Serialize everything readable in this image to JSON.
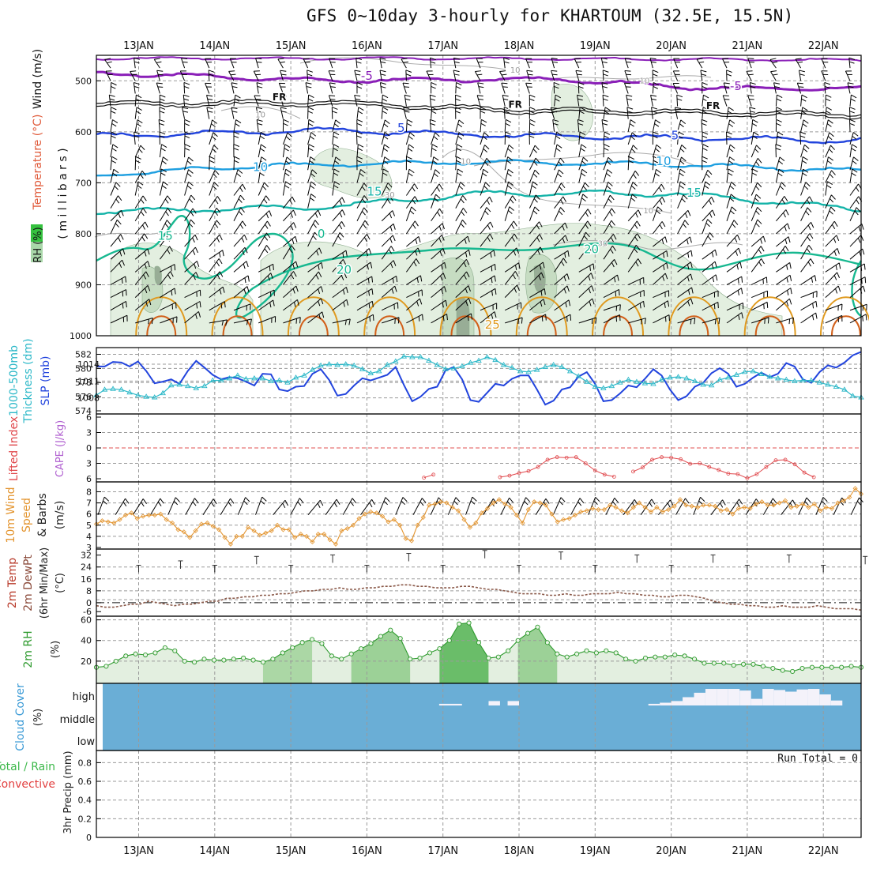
{
  "title": "GFS 0~10day 3-hourly for KHARTOUM (32.5E, 15.5N)",
  "colors": {
    "frame": "#000000",
    "grid": "#9a9a9a",
    "purple": "#8a1fb8",
    "blue": "#2244dd",
    "skyblue": "#1e9fe0",
    "teal": "#14b3a8",
    "sea": "#17b890",
    "orange": "#e09a1f",
    "darkorange": "#d2601a",
    "rh_light": "#e3efe0",
    "rh_mid": "#c6dcc2",
    "rh_dark": "#98ad96",
    "slp": "#2244dd",
    "thick": "#2cb8c8",
    "li": "#e0484c",
    "cape": "#b060d0",
    "wind": "#e39530",
    "temp_line": "#4a3a30",
    "dew_line": "#8b5a4a",
    "rh2m": "#2e9a2e",
    "rh2m_fill": "#7cc47c",
    "cloud": "#6aaed6"
  },
  "chart_data": [
    {
      "type": "contour",
      "panel": "upper-air",
      "ylabel_parts": [
        "RH (%)",
        "Temperature (°C)",
        "Wind (m/s)"
      ],
      "ylabel2": "( m i l l i b a r s )",
      "yticks": [
        500,
        600,
        700,
        800,
        900,
        1000
      ],
      "ylim": [
        450,
        1000
      ],
      "contour_labels": [
        {
          "text": "-5",
          "day": 3.0,
          "p": 498,
          "color": "purple"
        },
        {
          "text": "-5",
          "day": 7.85,
          "p": 518,
          "color": "purple"
        },
        {
          "text": "FR",
          "day": 1.85,
          "p": 538,
          "color": "black"
        },
        {
          "text": "FR",
          "day": 4.95,
          "p": 553,
          "color": "black"
        },
        {
          "text": "FR",
          "day": 7.55,
          "p": 555,
          "color": "black"
        },
        {
          "text": "5",
          "day": 3.45,
          "p": 600,
          "color": "blue"
        },
        {
          "text": "5",
          "day": 7.05,
          "p": 615,
          "color": "blue"
        },
        {
          "text": "10",
          "day": 1.6,
          "p": 677,
          "color": "skyblue"
        },
        {
          "text": "10",
          "day": 6.9,
          "p": 665,
          "color": "skyblue"
        },
        {
          "text": "15",
          "day": 3.1,
          "p": 725,
          "color": "teal"
        },
        {
          "text": "15",
          "day": 7.3,
          "p": 727,
          "color": "teal"
        },
        {
          "text": "15",
          "day": 0.35,
          "p": 812,
          "color": "sea"
        },
        {
          "text": "0",
          "day": 2.4,
          "p": 808,
          "color": "sea"
        },
        {
          "text": "20",
          "day": 2.7,
          "p": 878,
          "color": "sea"
        },
        {
          "text": "20",
          "day": 5.95,
          "p": 838,
          "color": "sea"
        },
        {
          "text": "25",
          "day": 4.65,
          "p": 986,
          "color": "orange"
        },
        {
          "text": "10",
          "day": 4.95,
          "p": 484,
          "color": "grey"
        },
        {
          "text": "10",
          "day": 6.65,
          "p": 505,
          "color": "grey"
        },
        {
          "text": "10",
          "day": 1.6,
          "p": 572,
          "color": "grey"
        },
        {
          "text": "10",
          "day": 4.3,
          "p": 663,
          "color": "grey"
        },
        {
          "text": "30",
          "day": 3.3,
          "p": 729,
          "color": "grey"
        },
        {
          "text": "10",
          "day": 6.7,
          "p": 760,
          "color": "grey"
        },
        {
          "text": "30",
          "day": 6.1,
          "p": 824,
          "color": "grey"
        }
      ]
    },
    {
      "type": "line",
      "panel": "slp-thickness",
      "ylabel_left": [
        "1000-500mb",
        "Thickness (dm)"
      ],
      "ylabel_right": "SLP (mb)",
      "yticks_left": [
        574,
        576,
        578,
        580,
        582
      ],
      "yticks_right": [
        1008,
        1011,
        1014
      ],
      "series": [
        {
          "name": "SLP (mb)",
          "axis": "right",
          "values": [
            1013.6,
            1013.6,
            1014.4,
            1014.3,
            1013.6,
            1014.5,
            1012.8,
            1010.6,
            1010.9,
            1011.3,
            1010.5,
            1012.8,
            1014.6,
            1013.4,
            1012.1,
            1011.3,
            1011.7,
            1011.5,
            1010.9,
            1010.2,
            1012.3,
            1012.2,
            1009.5,
            1009.2,
            1010.0,
            1010.1,
            1012.3,
            1013.1,
            1011.2,
            1008.4,
            1008.7,
            1010.2,
            1011.5,
            1011.1,
            1011.6,
            1012.1,
            1013.5,
            1010.3,
            1007.4,
            1008.2,
            1009.6,
            1010.0,
            1012.9,
            1013.5,
            1011.3,
            1007.6,
            1007.3,
            1008.9,
            1010.5,
            1010.2,
            1011.4,
            1012.0,
            1012.0,
            1009.5,
            1006.8,
            1007.5,
            1009.5,
            1009.9,
            1011.8,
            1012.6,
            1010.5,
            1007.4,
            1007.6,
            1008.8,
            1010.2,
            1009.9,
            1011.4,
            1013.1,
            1012.0,
            1009.5,
            1007.6,
            1008.3,
            1010.0,
            1010.7,
            1012.4,
            1013.3,
            1012.3,
            1010.0,
            1010.5,
            1011.6,
            1012.5,
            1011.7,
            1012.3,
            1014.2,
            1013.6,
            1011.3,
            1010.7,
            1012.6,
            1013.8,
            1013.4,
            1014.3,
            1015.6,
            1016.2
          ]
        },
        {
          "name": "1000-500mb Thickness (dm)",
          "axis": "left",
          "values": [
            576.2,
            577.0,
            577.1,
            577.0,
            576.6,
            576.2,
            576.0,
            575.9,
            576.5,
            577.6,
            577.7,
            577.5,
            577.2,
            577.5,
            578.3,
            578.3,
            578.6,
            579.0,
            578.5,
            578.6,
            578.6,
            578.2,
            578.3,
            578.0,
            578.7,
            579.0,
            579.8,
            580.4,
            580.6,
            580.5,
            580.6,
            580.4,
            579.9,
            579.3,
            579.6,
            580.5,
            581.0,
            581.7,
            581.6,
            581.6,
            581.1,
            580.5,
            579.9,
            580.0,
            580.3,
            580.8,
            581.1,
            581.6,
            581.2,
            580.5,
            580.1,
            579.6,
            579.5,
            579.8,
            580.2,
            580.5,
            580.2,
            579.6,
            578.9,
            578.1,
            577.4,
            577.2,
            577.5,
            578.0,
            578.4,
            578.1,
            577.9,
            577.8,
            578.4,
            578.7,
            578.8,
            578.6,
            578.2,
            577.7,
            577.6,
            578.4,
            578.7,
            579.1,
            579.5,
            579.6,
            579.2,
            578.8,
            578.6,
            578.4,
            578.2,
            578.3,
            578.3,
            578.0,
            577.7,
            577.4,
            577.0,
            576.1,
            575.9
          ]
        }
      ]
    },
    {
      "type": "line",
      "panel": "li-cape",
      "ylabel_parts": [
        "Lifted Index",
        "CAPE (J/kg)"
      ],
      "yticks": [
        -6,
        -3,
        0,
        3,
        6
      ],
      "yticklabels": [
        "6",
        "3",
        "0",
        "3",
        "6"
      ],
      "reference_line": 0,
      "series": [
        {
          "name": "Lifted Index",
          "day_start": 3.75,
          "step": 0.125,
          "values": [
            5.8,
            5.2,
            null,
            null,
            null,
            null,
            null,
            null,
            5.7,
            5.4,
            4.9,
            4.5,
            3.7,
            2.3,
            1.8,
            1.9,
            1.8,
            3.0,
            4.4,
            5.2,
            5.6,
            null,
            4.6,
            3.8,
            2.3,
            1.8,
            1.9,
            2.2,
            3.1,
            3.0,
            3.7,
            4.3,
            5.0,
            5.1,
            5.9,
            5.1,
            3.7,
            2.4,
            2.3,
            3.2,
            4.8,
            5.7,
            null,
            null,
            null,
            null,
            null,
            4.7,
            5.0,
            5.5
          ]
        }
      ]
    },
    {
      "type": "line",
      "panel": "wind10m",
      "ylabel_parts": [
        "10m Wind",
        "Speed",
        "& Barbs",
        "(m/s)"
      ],
      "yticks": [
        3,
        4,
        5,
        6,
        7,
        8
      ],
      "series": [
        {
          "name": "10m Wind Speed (m/s)",
          "values": [
            5.1,
            5.4,
            5.3,
            5.2,
            5.5,
            5.9,
            6.1,
            5.6,
            5.8,
            5.9,
            5.9,
            6.0,
            5.5,
            5.2,
            4.6,
            4.4,
            3.9,
            4.5,
            5.1,
            5.2,
            4.9,
            4.6,
            3.9,
            3.3,
            4.0,
            4.0,
            4.8,
            4.5,
            4.1,
            4.3,
            4.5,
            5.0,
            4.6,
            4.6,
            3.9,
            4.2,
            4.0,
            3.5,
            4.2,
            4.2,
            3.7,
            3.3,
            4.5,
            4.7,
            5.0,
            5.6,
            6.0,
            6.2,
            6.1,
            5.8,
            5.3,
            5.5,
            5.0,
            3.8,
            3.6,
            5.0,
            5.7,
            6.8,
            6.9,
            7.1,
            7.0,
            6.6,
            6.3,
            5.5,
            4.8,
            5.2,
            6.1,
            6.5,
            7.0,
            7.3,
            6.9,
            6.6,
            5.9,
            5.2,
            6.4,
            7.1,
            7.0,
            6.8,
            6.0,
            5.3,
            5.5,
            5.6,
            5.9,
            6.2,
            6.3,
            6.5,
            6.4,
            6.4,
            6.8,
            6.6,
            6.3,
            6.1,
            6.6,
            7.0,
            6.6,
            6.2,
            6.6,
            6.2,
            6.4,
            6.7,
            7.3,
            6.8,
            6.7,
            6.6,
            6.8,
            6.8,
            6.7,
            6.3,
            6.4,
            6.0,
            6.5,
            6.6,
            6.5,
            6.9,
            7.1,
            6.8,
            6.8,
            7.0,
            7.2,
            6.6,
            6.7,
            6.9,
            6.6,
            6.9,
            6.3,
            6.6,
            6.5,
            7.0,
            7.2,
            7.5,
            8.3,
            7.8
          ]
        }
      ]
    },
    {
      "type": "area",
      "panel": "temp2m",
      "ylabel_parts": [
        "2m Temp",
        "2m DewPt",
        "(6hr Min/Max)",
        "(°C)"
      ],
      "yticks": [
        -6,
        0,
        8,
        16,
        24,
        32
      ],
      "yticklabels": [
        "-6",
        "0",
        "8",
        "16",
        "24",
        "32"
      ],
      "series": [
        {
          "name": "2m Temp",
          "min": 20,
          "max": [
            26,
            29,
            30,
            31,
            33,
            32,
            30,
            30,
            30,
            29
          ],
          "peak_day": [
            0.55,
            1.55,
            2.55,
            3.55,
            4.55,
            5.55,
            6.55,
            7.55,
            8.55,
            9.55
          ]
        },
        {
          "name": "2m DewPt",
          "values": [
            -2,
            -3,
            -3,
            -2,
            -1,
            -1,
            1,
            0,
            -1,
            -2,
            -1,
            -1,
            0,
            1,
            1,
            3,
            3,
            4,
            4,
            5,
            5,
            6,
            6,
            7,
            8,
            8,
            9,
            9,
            10,
            9,
            9,
            10,
            10,
            11,
            11,
            12,
            12,
            11,
            11,
            10,
            10,
            10,
            11,
            11,
            10,
            9,
            9,
            8,
            7,
            6,
            6,
            6,
            5,
            5,
            6,
            5,
            5,
            6,
            6,
            6,
            7,
            6,
            6,
            5,
            5,
            4,
            4,
            5,
            5,
            4,
            3,
            1,
            0,
            -1,
            -1,
            -2,
            -2,
            -3,
            -3,
            -2,
            -3,
            -3,
            -3,
            -2,
            -3,
            -4,
            -4,
            -4,
            -5
          ]
        }
      ]
    },
    {
      "type": "area",
      "panel": "rh2m",
      "ylabel_parts": [
        "2m RH",
        "(%)"
      ],
      "yticks": [
        20,
        40,
        60
      ],
      "series": [
        {
          "name": "2m RH (%)",
          "values": [
            14,
            15,
            20,
            25,
            27,
            26,
            28,
            33,
            30,
            20,
            19,
            22,
            21,
            21,
            22,
            23,
            21,
            19,
            22,
            28,
            33,
            38,
            41,
            37,
            25,
            22,
            27,
            32,
            37,
            44,
            50,
            42,
            22,
            23,
            28,
            32,
            40,
            56,
            57,
            38,
            23,
            24,
            30,
            40,
            47,
            53,
            38,
            27,
            24,
            27,
            30,
            28,
            30,
            28,
            22,
            20,
            23,
            24,
            24,
            26,
            25,
            22,
            18,
            18,
            18,
            16,
            17,
            17,
            15,
            13,
            11,
            10,
            13,
            14,
            14,
            14,
            14,
            15,
            14
          ]
        }
      ]
    },
    {
      "type": "heatmap",
      "panel": "cloud",
      "ylabel_parts": [
        "Cloud Cover",
        "(%)"
      ],
      "yticklabels": [
        "high",
        "middle",
        "low"
      ],
      "high_cloud_blocks": [
        [
          3.95,
          4.25,
          0.3
        ],
        [
          4.6,
          4.75,
          0.8
        ],
        [
          4.85,
          5.0,
          0.8
        ],
        [
          6.7,
          6.85,
          0.3
        ],
        [
          6.85,
          7.0,
          0.5
        ],
        [
          7.0,
          7.15,
          0.8
        ],
        [
          7.15,
          7.3,
          1.5
        ],
        [
          7.3,
          7.45,
          2.3
        ],
        [
          7.45,
          7.6,
          3.0
        ],
        [
          7.6,
          7.75,
          3.0
        ],
        [
          7.75,
          7.9,
          3.0
        ],
        [
          7.9,
          8.05,
          2.7
        ],
        [
          8.05,
          8.2,
          1.2
        ],
        [
          8.2,
          8.35,
          3.0
        ],
        [
          8.35,
          8.5,
          2.8
        ],
        [
          8.5,
          8.65,
          2.5
        ],
        [
          8.65,
          8.8,
          2.9
        ],
        [
          8.8,
          8.95,
          3.0
        ],
        [
          8.95,
          9.1,
          2.0
        ],
        [
          9.1,
          9.25,
          0.9
        ]
      ]
    },
    {
      "type": "bar",
      "panel": "precip",
      "ylabel_parts": [
        "Total / Rain",
        "Convective",
        "3hr Precip (mm)"
      ],
      "yticks": [
        0,
        0.2,
        0.4,
        0.6,
        0.8
      ],
      "yticklabels": [
        "0",
        "0.2",
        "0.4",
        "0.6",
        "0.8"
      ],
      "annotation": "Run Total = 0",
      "values": []
    }
  ],
  "x_axis": {
    "labels": [
      "13JAN",
      "14JAN",
      "15JAN",
      "16JAN",
      "17JAN",
      "18JAN",
      "19JAN",
      "20JAN",
      "21JAN",
      "22JAN"
    ]
  }
}
